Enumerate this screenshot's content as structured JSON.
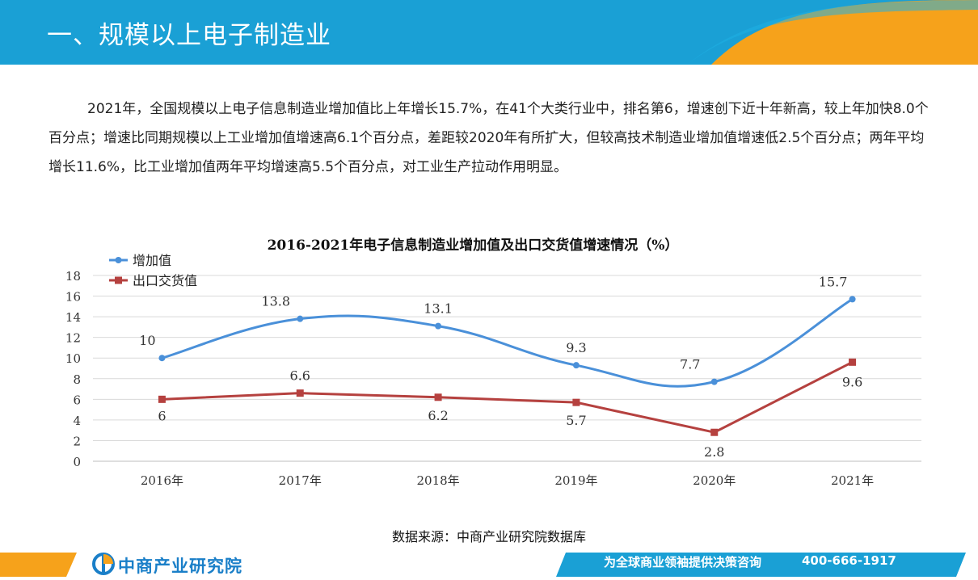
{
  "header": {
    "title": "一、规模以上电子制造业"
  },
  "intro": {
    "paragraph": "2021年，全国规模以上电子信息制造业增加值比上年增长15.7%，在41个大类行业中，排名第6，增速创下近十年新高，较上年加快8.0个百分点；增速比同期规模以上工业增加值增速高6.1个百分点，差距较2020年有所扩大，但较高技术制造业增加值增速低2.5个百分点；两年平均增长11.6%，比工业增加值两年平均增速高5.5个百分点，对工业生产拉动作用明显。"
  },
  "chart_data": {
    "type": "line",
    "title": "2016-2021年电子信息制造业增加值及出口交货值增速情况（%）",
    "categories": [
      "2016年",
      "2017年",
      "2018年",
      "2019年",
      "2020年",
      "2021年"
    ],
    "series": [
      {
        "name": "增加值",
        "values": [
          10,
          13.8,
          13.1,
          9.3,
          7.7,
          15.7
        ],
        "labels": [
          "10",
          "13.8",
          "13.1",
          "9.3",
          "7.7",
          "15.7"
        ],
        "color": "#4a90d9",
        "marker": "circle",
        "smooth": true
      },
      {
        "name": "出口交货值",
        "values": [
          6,
          6.6,
          6.2,
          5.7,
          2.8,
          9.6
        ],
        "labels": [
          "6",
          "6.6",
          "6.2",
          "5.7",
          "2.8",
          "9.6"
        ],
        "color": "#b5413f",
        "marker": "square",
        "smooth": false
      }
    ],
    "ylim": [
      0,
      18
    ],
    "yticks": [
      "0",
      "2",
      "4",
      "6",
      "8",
      "10",
      "12",
      "14",
      "16",
      "18"
    ],
    "grid": true,
    "legend": "top-left"
  },
  "source": {
    "text": "数据来源：中商产业研究院数据库"
  },
  "footer": {
    "logo_text": "中商产业研究院",
    "slogan": "为全球商业领袖提供决策咨询",
    "phone": "400-666-1917"
  },
  "colors": {
    "header_blue": "#1aa0d5",
    "header_orange": "#f6a21b",
    "footer_blue": "#1aa0d5",
    "footer_orange": "#f6a21b"
  }
}
